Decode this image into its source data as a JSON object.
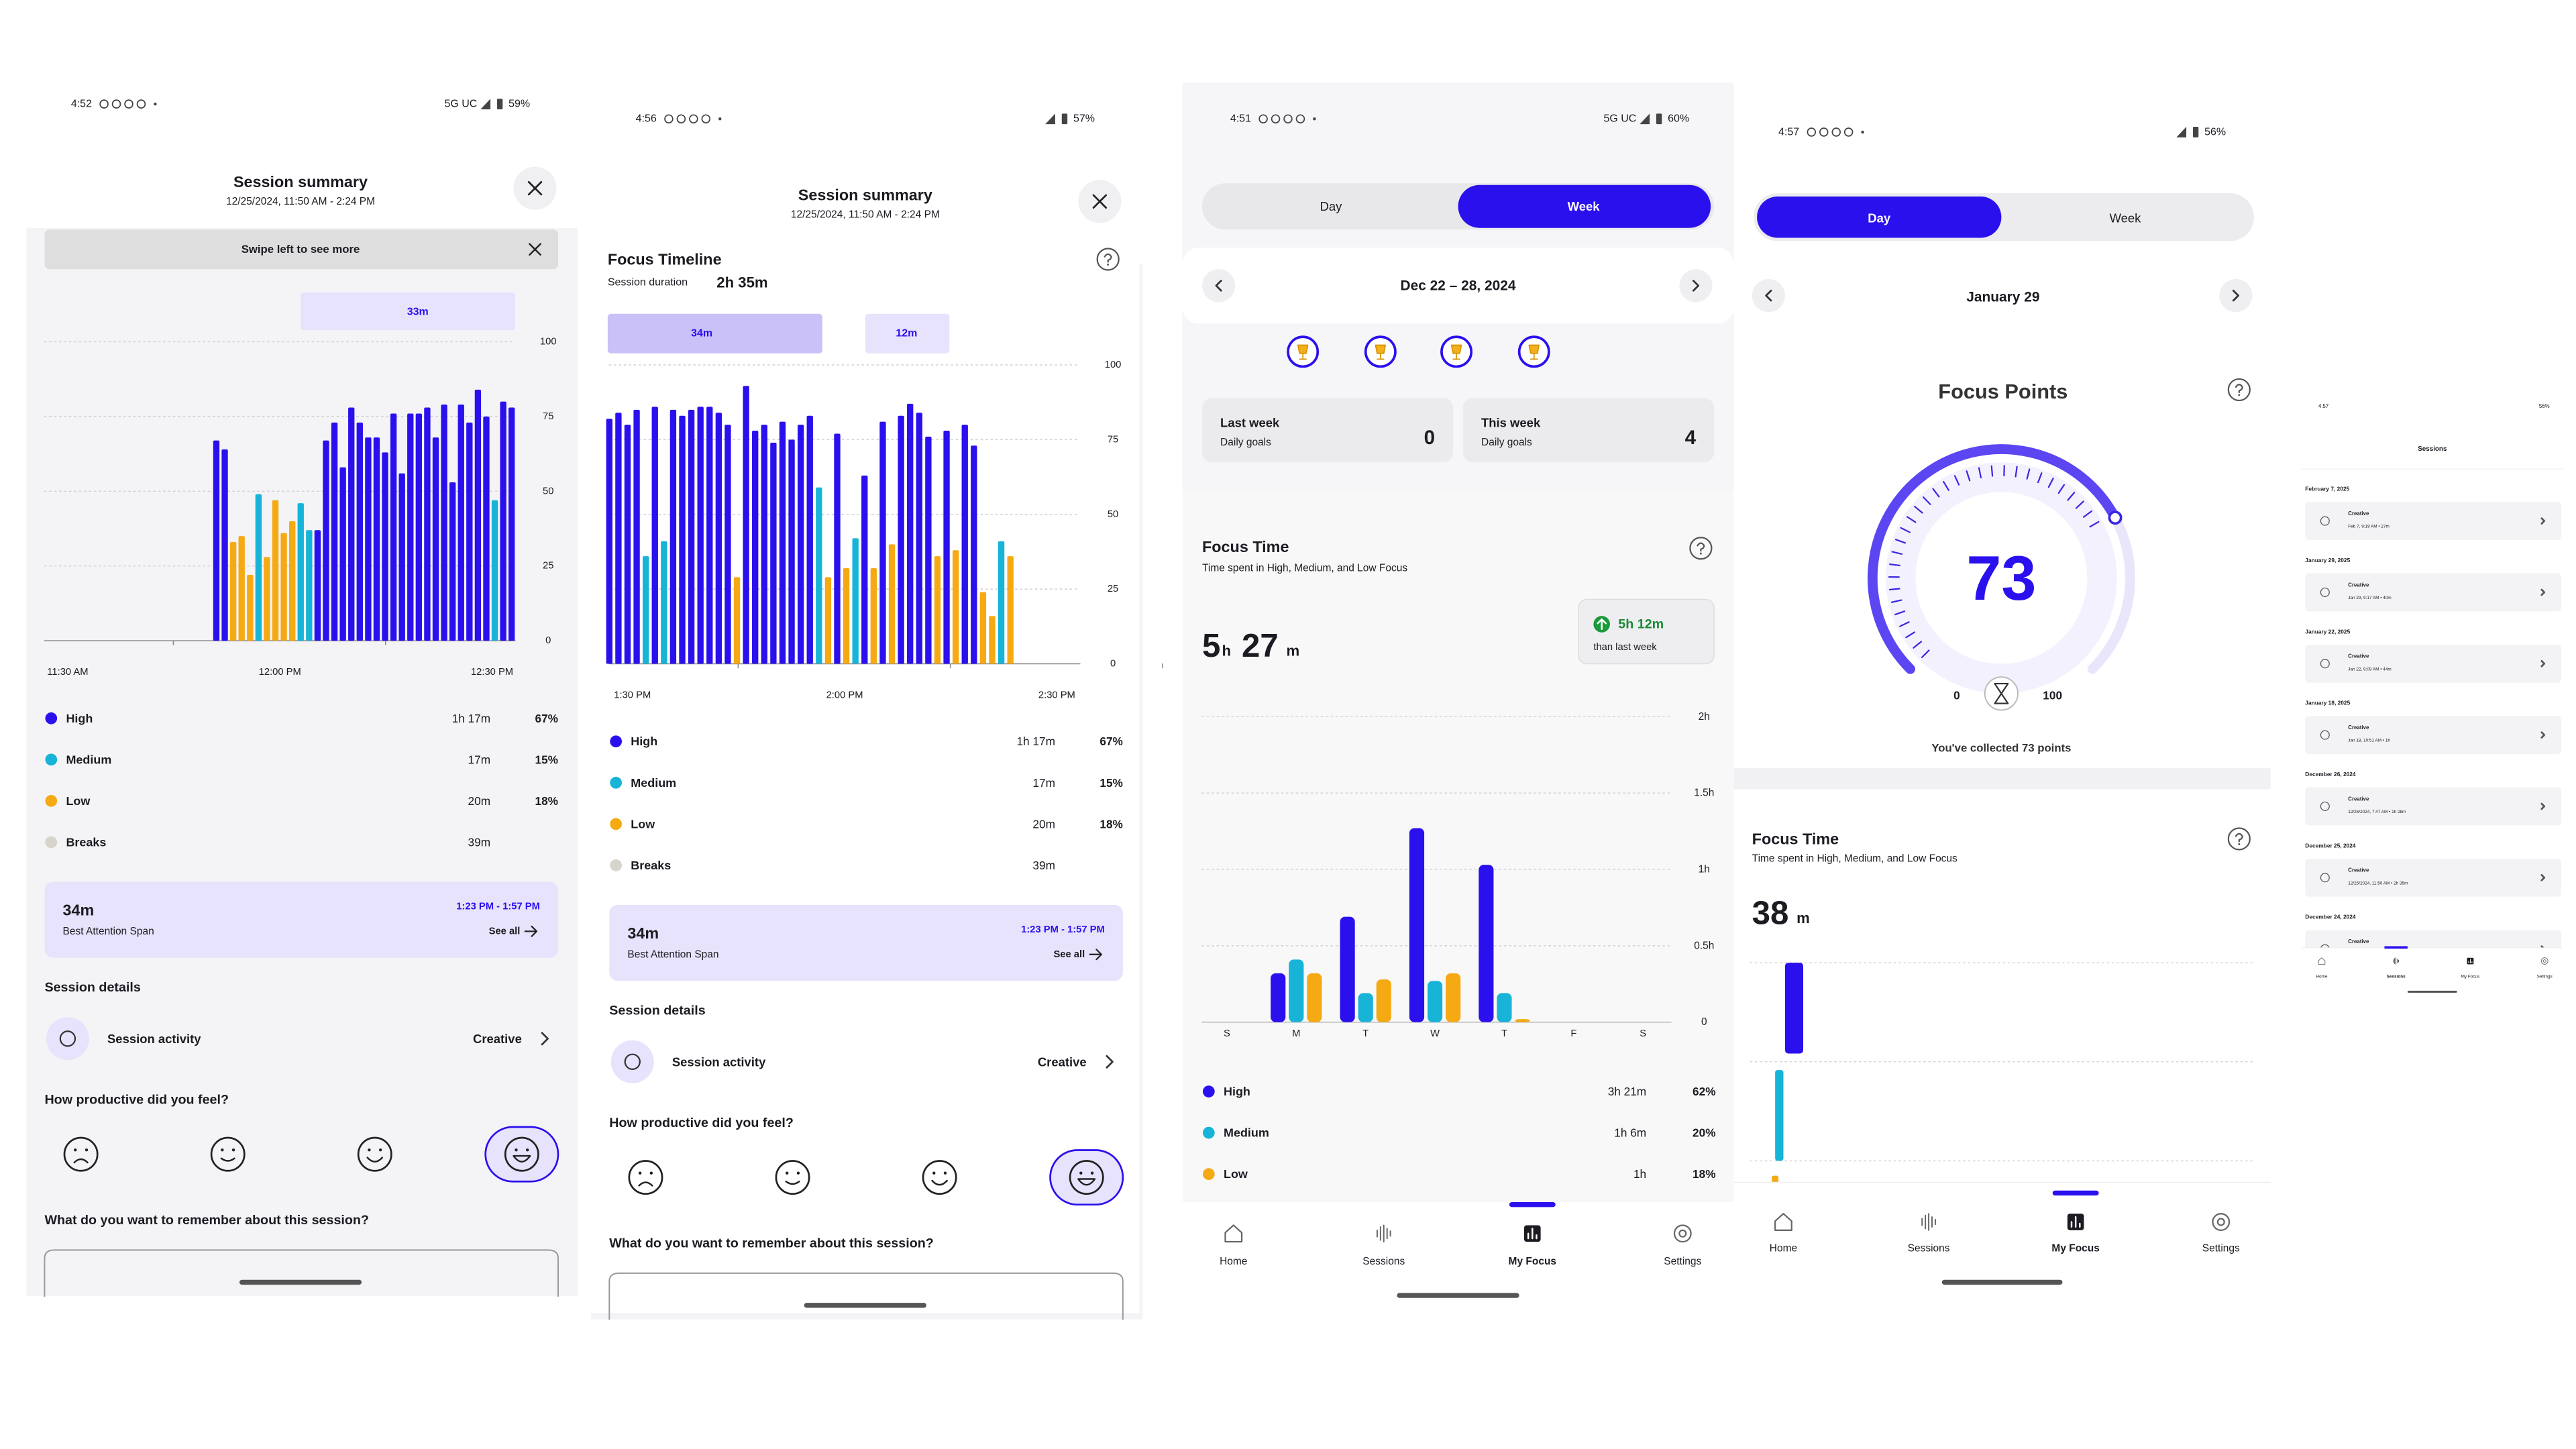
{
  "screens": [
    {
      "status": {
        "time": "4:52",
        "network": "5G UC",
        "battery": "59%"
      },
      "title": "Session summary",
      "subtitle": "12/25/2024, 11:50 AM - 2:24 PM",
      "banner": "Swipe left to see more",
      "tabs": [
        "33m"
      ],
      "timeline": {
        "type": "bar",
        "ylim": [
          0,
          100
        ],
        "yticks": [
          0,
          25,
          50,
          75,
          100
        ],
        "xlabels": [
          "11:30 AM",
          "12:00 PM",
          "12:30 PM"
        ],
        "series": [
          {
            "color": "#2b10ee",
            "values": [
              67,
              64,
              null,
              null,
              null,
              null,
              null,
              null,
              null,
              null,
              null,
              null,
              37,
              67,
              73,
              58,
              78,
              73,
              68,
              68,
              63,
              76,
              56,
              76,
              76,
              78,
              68,
              79,
              53,
              79,
              73,
              84,
              75,
              null,
              80,
              78
            ]
          },
          {
            "color": "#17b4d8",
            "values": [
              null,
              null,
              null,
              null,
              null,
              49,
              null,
              null,
              null,
              null,
              46,
              37,
              null,
              null,
              null,
              null,
              null,
              null,
              null,
              null,
              null,
              null,
              null,
              null,
              null,
              null,
              null,
              null,
              null,
              null,
              null,
              null,
              null,
              47,
              null,
              null
            ]
          },
          {
            "color": "#f5aa14",
            "values": [
              null,
              null,
              33,
              35,
              22,
              null,
              28,
              47,
              36,
              40,
              null,
              null,
              null,
              null,
              null,
              null,
              null,
              null,
              null,
              null,
              null,
              null,
              null,
              null,
              null,
              null,
              null,
              null,
              null,
              null,
              null,
              null,
              null,
              null,
              null,
              null
            ]
          }
        ]
      },
      "legend": [
        {
          "name": "High",
          "color": "#2b10ee",
          "duration": "1h 17m",
          "percent": "67%"
        },
        {
          "name": "Medium",
          "color": "#17b4d8",
          "duration": "17m",
          "percent": "15%"
        },
        {
          "name": "Low",
          "color": "#f5aa14",
          "duration": "20m",
          "percent": "18%"
        },
        {
          "name": "Breaks",
          "color": "#d6d4cb",
          "duration": "39m"
        }
      ],
      "attention": {
        "duration": "34m",
        "label": "Best Attention Span",
        "range": "1:23 PM - 1:57 PM",
        "link": "See all"
      },
      "details_heading": "Session details",
      "activity_label": "Session activity",
      "activity_value": "Creative",
      "question": "How productive did you feel?",
      "remember": "What do you want to remember about this session?"
    },
    {
      "status": {
        "time": "4:56",
        "battery": "57%"
      },
      "title": "Session summary",
      "subtitle": "12/25/2024, 11:50 AM - 2:24 PM",
      "heading": "Focus Timeline",
      "duration_label": "Session duration",
      "duration": "2h 35m",
      "tabs": [
        "34m",
        "12m"
      ],
      "timeline": {
        "type": "bar",
        "ylim": [
          0,
          100
        ],
        "yticks": [
          0,
          25,
          50,
          75,
          100
        ],
        "xlabels": [
          "1:30 PM",
          "2:00 PM",
          "2:30 PM"
        ],
        "series": [
          {
            "color": "#2b10ee",
            "values": [
              82,
              84,
              80,
              85,
              null,
              86,
              null,
              85,
              83,
              85,
              86,
              86,
              84,
              80,
              null,
              93,
              78,
              80,
              74,
              81,
              75,
              80,
              83,
              null,
              null,
              77,
              null,
              null,
              63,
              null,
              81,
              null,
              83,
              87,
              84,
              76,
              null,
              78,
              null,
              80,
              73,
              null,
              null,
              null,
              null
            ]
          },
          {
            "color": "#17b4d8",
            "values": [
              null,
              null,
              null,
              null,
              36,
              null,
              41,
              null,
              null,
              null,
              null,
              null,
              null,
              null,
              null,
              null,
              null,
              null,
              null,
              null,
              null,
              null,
              null,
              59,
              null,
              null,
              null,
              42,
              null,
              null,
              null,
              null,
              null,
              null,
              null,
              null,
              null,
              null,
              null,
              null,
              null,
              null,
              null,
              41,
              null
            ]
          },
          {
            "color": "#f5aa14",
            "values": [
              null,
              null,
              null,
              null,
              null,
              null,
              null,
              null,
              null,
              null,
              null,
              null,
              null,
              null,
              29,
              null,
              null,
              null,
              null,
              null,
              null,
              null,
              null,
              null,
              29,
              null,
              32,
              null,
              null,
              32,
              null,
              40,
              null,
              null,
              null,
              null,
              36,
              null,
              38,
              null,
              null,
              24,
              16,
              null,
              36
            ]
          }
        ]
      },
      "legend": [
        {
          "name": "High",
          "color": "#2b10ee",
          "duration": "1h 17m",
          "percent": "67%"
        },
        {
          "name": "Medium",
          "color": "#17b4d8",
          "duration": "17m",
          "percent": "15%"
        },
        {
          "name": "Low",
          "color": "#f5aa14",
          "duration": "20m",
          "percent": "18%"
        },
        {
          "name": "Breaks",
          "color": "#d6d4cb",
          "duration": "39m"
        }
      ],
      "attention": {
        "duration": "34m",
        "label": "Best Attention Span",
        "range": "1:23 PM - 1:57 PM",
        "link": "See all"
      },
      "details_heading": "Session details",
      "activity_label": "Session activity",
      "activity_value": "Creative",
      "question": "How productive did you feel?",
      "remember": "What do you want to remember about this session?"
    },
    {
      "status": {
        "time": "4:51",
        "network": "5G UC",
        "battery": "60%"
      },
      "toggle": [
        "Day",
        "Week"
      ],
      "date_range": "Dec 22 – 28, 2024",
      "cards": [
        {
          "title": "Last week",
          "subtitle": "Daily goals",
          "value": 0
        },
        {
          "title": "This week",
          "subtitle": "Daily goals",
          "value": 4
        }
      ],
      "focus_time": {
        "title": "Focus Time",
        "subtitle": "Time spent in High, Medium, and Low Focus",
        "hours": "5",
        "hours_unit": "h",
        "minutes": "27",
        "minutes_unit": "m",
        "change": "5h 12m",
        "change_label": "than last week"
      },
      "chart": {
        "type": "bar",
        "categories": [
          "S",
          "M",
          "T",
          "W",
          "T",
          "F",
          "S"
        ],
        "ylim": [
          0,
          2
        ],
        "yticks": [
          0,
          {
            "value": 0.5,
            "label": "0.5h"
          },
          {
            "value": 1,
            "label": "1h"
          },
          {
            "value": 1.5,
            "label": "1.5h"
          },
          {
            "value": 2,
            "label": "2h"
          }
        ],
        "series": [
          {
            "color": "#2b10ee",
            "values": [
              null,
              0.32,
              0.69,
              1.27,
              1.03,
              null,
              null
            ]
          },
          {
            "color": "#17b4d8",
            "values": [
              null,
              0.41,
              0.19,
              0.27,
              0.19,
              null,
              null
            ]
          },
          {
            "color": "#f5aa14",
            "values": [
              null,
              0.32,
              0.28,
              0.32,
              0.02,
              null,
              null
            ]
          }
        ]
      },
      "legend": [
        {
          "name": "High",
          "color": "#2b10ee",
          "duration": "3h 21m",
          "percent": "62%"
        },
        {
          "name": "Medium",
          "color": "#17b4d8",
          "duration": "1h 6m",
          "percent": "20%"
        },
        {
          "name": "Low",
          "color": "#f5aa14",
          "duration": "1h",
          "percent": "18%"
        }
      ],
      "nav": [
        "Home",
        "Sessions",
        "My Focus",
        "Settings"
      ]
    },
    {
      "status": {
        "time": "4:57",
        "battery": "56%"
      },
      "toggle": [
        "Day",
        "Week"
      ],
      "date": "January 29",
      "title": "Focus Points",
      "gauge": {
        "value": 73,
        "min": 0,
        "max": 100
      },
      "gauge_caption": "You've collected 73 points",
      "focus_time": {
        "title": "Focus Time",
        "subtitle": "Time spent in High, Medium, and Low Focus",
        "minutes": "38",
        "minutes_unit": "m"
      },
      "nav": [
        "Home",
        "Sessions",
        "My Focus",
        "Settings"
      ]
    },
    {
      "status": {
        "time": "4:57",
        "battery": "56%"
      },
      "title": "Sessions",
      "groups": [
        {
          "date": "February 7, 2025",
          "sessions": [
            {
              "name": "Creative",
              "detail": "Feb 7, 9:19 AM • 27m"
            }
          ]
        },
        {
          "date": "January 29, 2025",
          "sessions": [
            {
              "name": "Creative",
              "detail": "Jan 29, 9:17 AM • 40m"
            }
          ]
        },
        {
          "date": "January 22, 2025",
          "sessions": [
            {
              "name": "Creative",
              "detail": "Jan 22, 9:09 AM • 44m"
            }
          ]
        },
        {
          "date": "January 18, 2025",
          "sessions": [
            {
              "name": "Creative",
              "detail": "Jan 18, 10:51 AM • 1h"
            }
          ]
        },
        {
          "date": "December 26, 2024",
          "sessions": [
            {
              "name": "Creative",
              "detail": "12/26/2024, 7:47 AM • 1h 28m"
            }
          ]
        },
        {
          "date": "December 25, 2024",
          "sessions": [
            {
              "name": "Creative",
              "detail": "12/25/2024, 11:50 AM • 2h 35m"
            }
          ]
        },
        {
          "date": "December 24, 2024",
          "sessions": [
            {
              "name": "Creative"
            }
          ]
        }
      ],
      "nav": [
        "Home",
        "Sessions",
        "My Focus",
        "Settings"
      ]
    }
  ]
}
